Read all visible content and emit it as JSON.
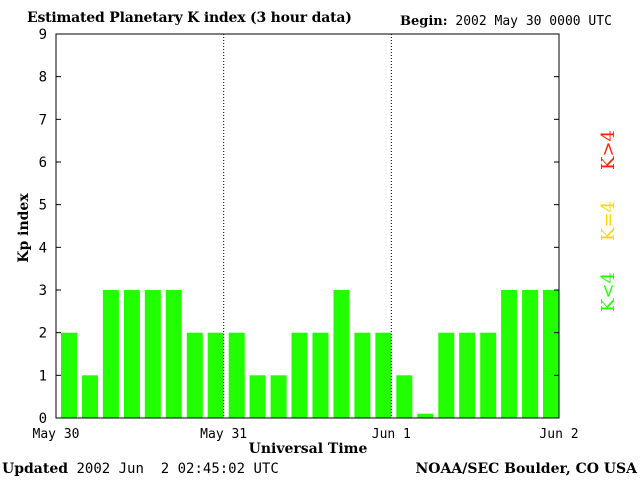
{
  "header": {
    "title": "Estimated Planetary K index (3 hour data)",
    "begin_label": "Begin:",
    "begin_value": "2002 May 30 0000 UTC"
  },
  "footer": {
    "updated_label": "Updated",
    "updated_value": "2002 Jun  2 02:45:02 UTC",
    "credit": "NOAA/SEC Boulder, CO USA"
  },
  "legend": {
    "high": {
      "label": "K>4",
      "color": "#ff2200"
    },
    "equal": {
      "label": "K=4",
      "color": "#ffd700"
    },
    "low": {
      "label": "K<4",
      "color": "#22ff00"
    }
  },
  "chart_data": {
    "type": "bar",
    "title": "Estimated Planetary K index (3 hour data)",
    "xlabel": "Universal Time",
    "ylabel": "Kp index",
    "ylim": [
      0,
      9
    ],
    "yticks": [
      "0",
      "1",
      "2",
      "3",
      "4",
      "5",
      "6",
      "7",
      "8",
      "9"
    ],
    "xticks": [
      "May 30",
      "May 31",
      "Jun 1",
      "Jun 2"
    ],
    "day_separators": "dotted",
    "bar_color": "#22ff00",
    "values": [
      2,
      1,
      3,
      3,
      3,
      3,
      2,
      2,
      2,
      1,
      1,
      2,
      2,
      3,
      2,
      2,
      1,
      0.1,
      2,
      2,
      2,
      3,
      3,
      3
    ]
  }
}
